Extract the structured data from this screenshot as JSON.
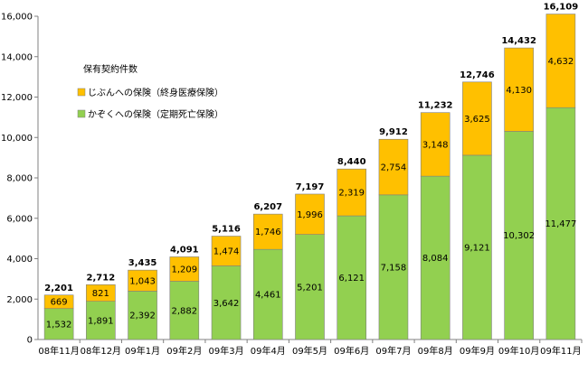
{
  "chart_data": {
    "type": "bar",
    "stacked": true,
    "title": "保有契約件数",
    "xlabel": "",
    "ylabel": "",
    "ylim": [
      0,
      16000
    ],
    "ytick_step": 2000,
    "grid": false,
    "legend_position": "top-left",
    "categories": [
      "08年11月",
      "08年12月",
      "09年1月",
      "09年2月",
      "09年3月",
      "09年4月",
      "09年5月",
      "09年6月",
      "09年7月",
      "09年8月",
      "09年9月",
      "09年10月",
      "09年11月"
    ],
    "series": [
      {
        "name": "かぞくへの保険（定期死亡保険）",
        "color": "#92d050",
        "values": [
          1532,
          1891,
          2392,
          2882,
          3642,
          4461,
          5201,
          6121,
          7158,
          8084,
          9121,
          10302,
          11477
        ]
      },
      {
        "name": "じぶんへの保険（終身医療保険）",
        "color": "#ffc000",
        "values": [
          669,
          821,
          1043,
          1209,
          1474,
          1746,
          1996,
          2319,
          2754,
          3148,
          3625,
          4130,
          4632
        ]
      }
    ],
    "totals": [
      2201,
      2712,
      3435,
      4091,
      5116,
      6207,
      7197,
      8440,
      9912,
      11232,
      12746,
      14432,
      16109
    ]
  }
}
